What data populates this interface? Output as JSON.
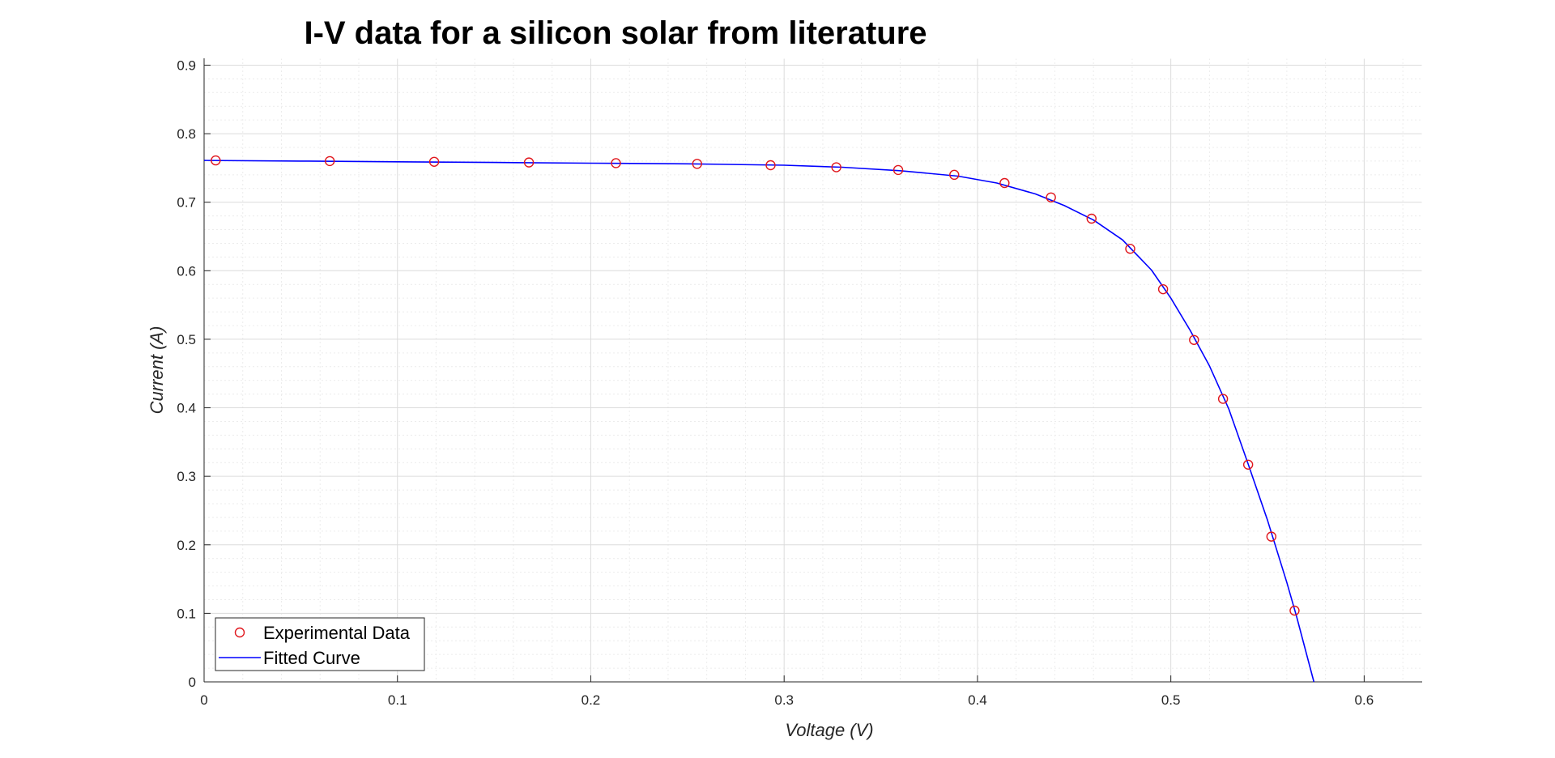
{
  "chart_data": {
    "type": "scatter",
    "title": "I-V data for a silicon solar from literature",
    "xlabel": "Voltage (V)",
    "ylabel": "Current (A)",
    "xlim": [
      0,
      0.63
    ],
    "ylim": [
      0,
      0.91
    ],
    "xticks": [
      0,
      0.1,
      0.2,
      0.3,
      0.4,
      0.5,
      0.6
    ],
    "yticks": [
      0,
      0.1,
      0.2,
      0.3,
      0.4,
      0.5,
      0.6,
      0.7,
      0.8,
      0.9
    ],
    "xtick_labels": [
      "0",
      "0.1",
      "0.2",
      "0.3",
      "0.4",
      "0.5",
      "0.6"
    ],
    "ytick_labels": [
      "0",
      "0.1",
      "0.2",
      "0.3",
      "0.4",
      "0.5",
      "0.6",
      "0.7",
      "0.8",
      "0.9"
    ],
    "grid": true,
    "minor_grid": true,
    "legend_position": "bottom-left",
    "series": [
      {
        "name": "Experimental Data",
        "kind": "markers",
        "marker": "circle",
        "color": "#e0161c",
        "x": [
          0.006,
          0.065,
          0.119,
          0.168,
          0.213,
          0.255,
          0.293,
          0.327,
          0.359,
          0.388,
          0.414,
          0.438,
          0.459,
          0.479,
          0.496,
          0.512,
          0.527,
          0.54,
          0.552,
          0.564
        ],
        "y": [
          0.761,
          0.76,
          0.759,
          0.758,
          0.757,
          0.756,
          0.754,
          0.751,
          0.747,
          0.74,
          0.728,
          0.707,
          0.676,
          0.632,
          0.573,
          0.499,
          0.413,
          0.317,
          0.212,
          0.104
        ]
      },
      {
        "name": "Fitted Curve",
        "kind": "line",
        "color": "#0000ff",
        "x": [
          0,
          0.05,
          0.1,
          0.15,
          0.2,
          0.25,
          0.3,
          0.33,
          0.36,
          0.39,
          0.41,
          0.43,
          0.445,
          0.46,
          0.475,
          0.49,
          0.5,
          0.51,
          0.52,
          0.53,
          0.54,
          0.55,
          0.56,
          0.565,
          0.574
        ],
        "y": [
          0.761,
          0.76,
          0.759,
          0.758,
          0.757,
          0.756,
          0.754,
          0.751,
          0.746,
          0.738,
          0.728,
          0.712,
          0.695,
          0.674,
          0.645,
          0.601,
          0.56,
          0.513,
          0.461,
          0.398,
          0.318,
          0.236,
          0.145,
          0.096,
          0.0
        ]
      }
    ]
  }
}
